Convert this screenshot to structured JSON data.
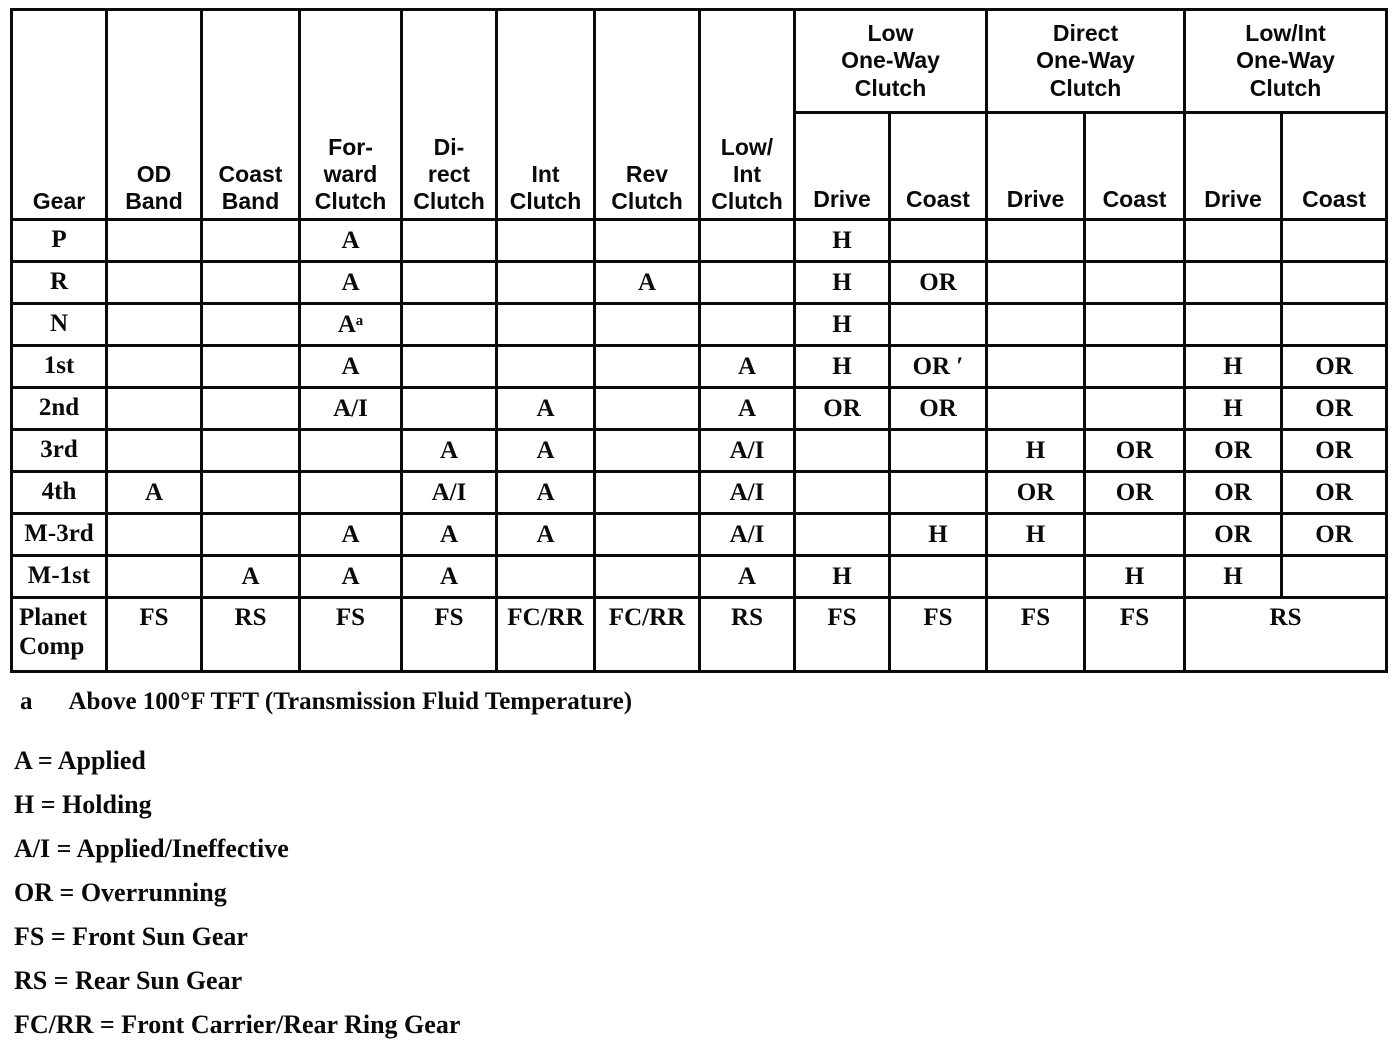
{
  "table": {
    "column_headers": [
      {
        "id": "gear",
        "label": "Gear"
      },
      {
        "id": "od-band",
        "label": "OD\nBand"
      },
      {
        "id": "coast-band",
        "label": "Coast\nBand"
      },
      {
        "id": "forward-clutch",
        "label": "For-\nward\nClutch"
      },
      {
        "id": "direct-clutch",
        "label": "Di-\nrect\nClutch"
      },
      {
        "id": "int-clutch",
        "label": "Int\nClutch"
      },
      {
        "id": "rev-clutch",
        "label": "Rev\nClutch"
      },
      {
        "id": "low-int-clutch",
        "label": "Low/\nInt\nClutch"
      }
    ],
    "group_headers": [
      {
        "id": "low-one-way-clutch",
        "label": "Low\nOne-Way\nClutch",
        "sub": [
          "Drive",
          "Coast"
        ]
      },
      {
        "id": "direct-one-way-clutch",
        "label": "Direct\nOne-Way\nClutch",
        "sub": [
          "Drive",
          "Coast"
        ]
      },
      {
        "id": "low-int-one-way-clutch",
        "label": "Low/Int\nOne-Way\nClutch",
        "sub": [
          "Drive",
          "Coast"
        ]
      }
    ],
    "rows": [
      {
        "gear": "P",
        "cells": [
          "",
          "",
          "A",
          "",
          "",
          "",
          "",
          "H",
          "",
          "",
          "",
          "",
          ""
        ]
      },
      {
        "gear": "R",
        "cells": [
          "",
          "",
          "A",
          "",
          "",
          "A",
          "",
          "H",
          "OR",
          "",
          "",
          "",
          ""
        ]
      },
      {
        "gear": "N",
        "cells": [
          "",
          "",
          "Aᵃ",
          "",
          "",
          "",
          "",
          "H",
          "",
          "",
          "",
          "",
          ""
        ]
      },
      {
        "gear": "1st",
        "cells": [
          "",
          "",
          "A",
          "",
          "",
          "",
          "A",
          "H",
          "OR ′",
          "",
          "",
          "H",
          "OR"
        ]
      },
      {
        "gear": "2nd",
        "cells": [
          "",
          "",
          "A/I",
          "",
          "A",
          "",
          "A",
          "OR",
          "OR",
          "",
          "",
          "H",
          "OR"
        ]
      },
      {
        "gear": "3rd",
        "cells": [
          "",
          "",
          "",
          "A",
          "A",
          "",
          "A/I",
          "",
          "",
          "H",
          "OR",
          "OR",
          "OR"
        ]
      },
      {
        "gear": "4th",
        "cells": [
          "A",
          "",
          "",
          "A/I",
          "A",
          "",
          "A/I",
          "",
          "",
          "OR",
          "OR",
          "OR",
          "OR"
        ]
      },
      {
        "gear": "M-3rd",
        "cells": [
          "",
          "",
          "A",
          "A",
          "A",
          "",
          "A/I",
          "",
          "H",
          "H",
          "",
          "OR",
          "OR"
        ]
      },
      {
        "gear": "M-1st",
        "cells": [
          "",
          "A",
          "A",
          "A",
          "",
          "",
          "A",
          "H",
          "",
          "",
          "H",
          "H",
          ""
        ]
      },
      {
        "gear": "Planet\nComp",
        "tall": true,
        "last_colspan": 2,
        "cells": [
          "FS",
          "RS",
          "FS",
          "FS",
          "FC/RR",
          "FC/RR",
          "RS",
          "FS",
          "FS",
          "FS",
          "FS",
          "RS"
        ]
      }
    ]
  },
  "footnote": {
    "marker": "a",
    "text": "Above 100°F TFT (Transmission Fluid Temperature)"
  },
  "legend": [
    "A = Applied",
    "H = Holding",
    "A/I = Applied/Ineffective",
    "OR = Overrunning",
    "FS = Front Sun Gear",
    "RS = Rear Sun Gear",
    "FC/RR = Front Carrier/Rear Ring Gear"
  ]
}
